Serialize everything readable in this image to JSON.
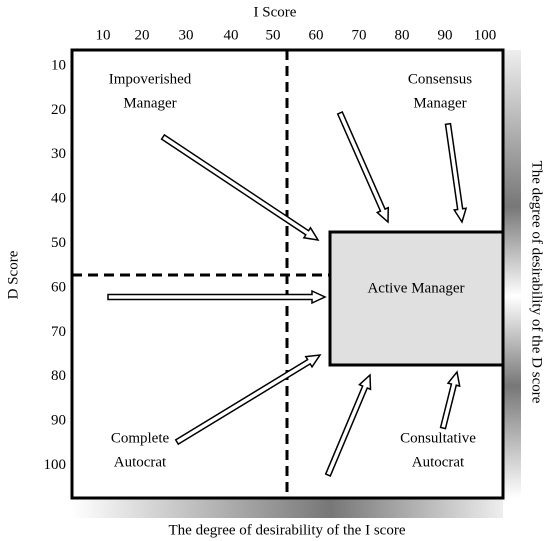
{
  "axes": {
    "top_title": "I Score",
    "top_ticks": [
      10,
      20,
      30,
      40,
      50,
      60,
      70,
      80,
      90,
      100
    ],
    "left_title": "D Score",
    "left_ticks": [
      10,
      20,
      30,
      40,
      50,
      60,
      70,
      80,
      90,
      100
    ],
    "right_label": "The degree of desirability of the  D score",
    "bottom_label": "The degree of desirability of the  I score"
  },
  "quadrants": [
    {
      "lines": [
        "Impoverished",
        "Manager"
      ]
    },
    {
      "lines": [
        "Consensus",
        "Manager"
      ]
    },
    {
      "lines": [
        "Complete",
        "Autocrat"
      ]
    },
    {
      "lines": [
        "Consultative",
        "Autocrat"
      ]
    }
  ],
  "center": {
    "label": "Active Manager"
  }
}
